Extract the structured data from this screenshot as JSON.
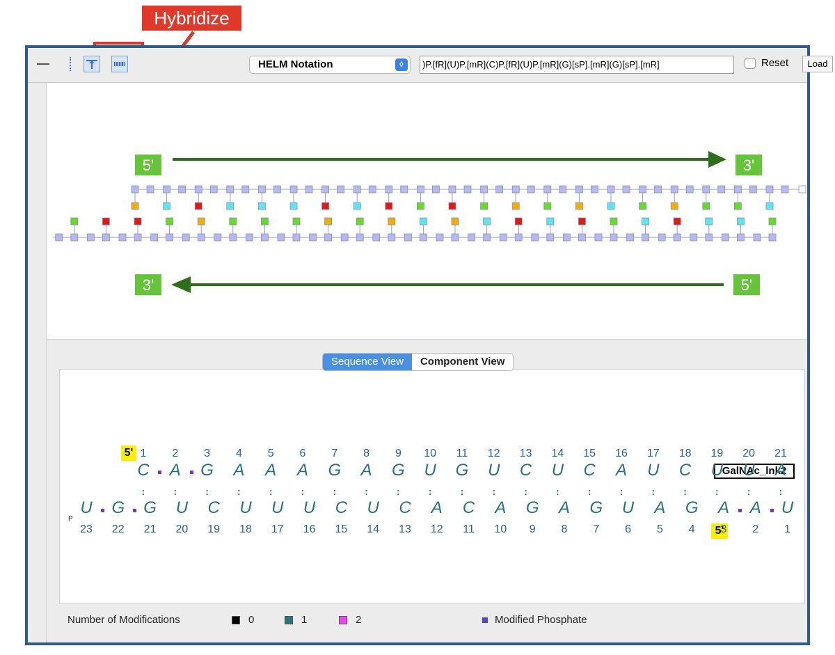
{
  "annotation": {
    "label": "Hybridize"
  },
  "toolbar": {
    "notation_select": "HELM Notation",
    "helm_value": ")P.[fR](U)P.[mR](C)P.[fR](U)P.[mR](G)[sP].[mR](G)[sP].[mR]",
    "reset_label": "Reset",
    "load_label": "Load",
    "icons": [
      "minus-icon",
      "column-icon",
      "distance-icon",
      "hybridize-icon"
    ]
  },
  "graph": {
    "top_strand": {
      "start_label": "5'",
      "end_label": "3'"
    },
    "bottom_strand": {
      "start_label": "5'",
      "end_label": "3'"
    },
    "colors": {
      "A": "#5ce6ee",
      "C": "#f1b000",
      "G": "#e01b0d",
      "U": "#66dd22",
      "phosphate": "#b8b8ee"
    }
  },
  "tabs": {
    "sequence": "Sequence View",
    "component": "Component View"
  },
  "sequence_view": {
    "sense": {
      "marker": "5'",
      "numbers": [
        "1",
        "2",
        "3",
        "4",
        "5",
        "6",
        "7",
        "8",
        "9",
        "10",
        "11",
        "12",
        "13",
        "14",
        "15",
        "16",
        "17",
        "18",
        "19",
        "20",
        "21"
      ],
      "bases": [
        "C",
        "A",
        "G",
        "A",
        "A",
        "A",
        "G",
        "A",
        "G",
        "U",
        "G",
        "U",
        "C",
        "U",
        "C",
        "A",
        "U",
        "C",
        "U",
        "U",
        "A"
      ],
      "conjugate": "GalNAc_lnk2"
    },
    "antisense": {
      "prefix": "P",
      "bases": [
        "U",
        "G",
        "G",
        "U",
        "C",
        "U",
        "U",
        "U",
        "C",
        "U",
        "C",
        "A",
        "C",
        "A",
        "G",
        "A",
        "G",
        "U",
        "A",
        "G",
        "A",
        "A",
        "U"
      ],
      "numbers": [
        "23",
        "22",
        "21",
        "20",
        "19",
        "18",
        "17",
        "16",
        "15",
        "14",
        "13",
        "12",
        "11",
        "10",
        "9",
        "8",
        "7",
        "6",
        "5",
        "4",
        "3",
        "2",
        "1"
      ],
      "marker": "5'"
    },
    "pair_mark": ":"
  },
  "legend": {
    "title": "Number of Modifications",
    "items": [
      {
        "label": "0",
        "color": "#000000"
      },
      {
        "label": "1",
        "color": "#2a7474"
      },
      {
        "label": "2",
        "color": "#ee44ee"
      }
    ],
    "phosphate_label": "Modified Phosphate",
    "phosphate_color": "#5544cc"
  }
}
